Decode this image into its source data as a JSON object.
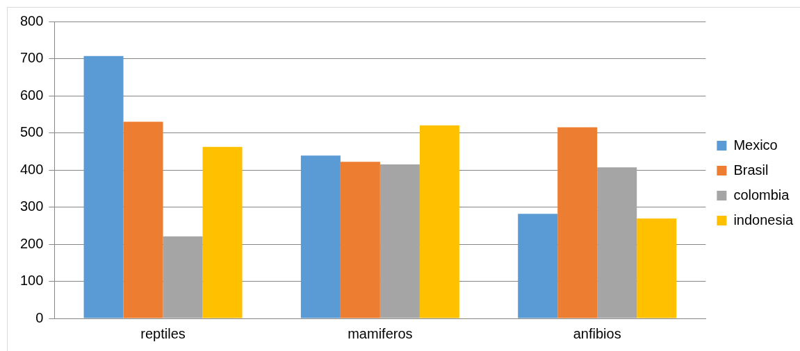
{
  "chart_data": {
    "type": "bar",
    "categories": [
      "reptiles",
      "mamiferos",
      "anfibios"
    ],
    "series": [
      {
        "name": "Mexico",
        "color": "#5b9bd5",
        "values": [
          707,
          439,
          282
        ]
      },
      {
        "name": "Brasil",
        "color": "#ed7d31",
        "values": [
          530,
          422,
          515
        ]
      },
      {
        "name": "colombia",
        "color": "#a5a5a5",
        "values": [
          221,
          415,
          407
        ]
      },
      {
        "name": "indonesia",
        "color": "#ffc000",
        "values": [
          462,
          520,
          269
        ]
      }
    ],
    "ylim": [
      0,
      800
    ],
    "yticks": [
      0,
      100,
      200,
      300,
      400,
      500,
      600,
      700,
      800
    ],
    "grid": "y",
    "legend": "right"
  }
}
